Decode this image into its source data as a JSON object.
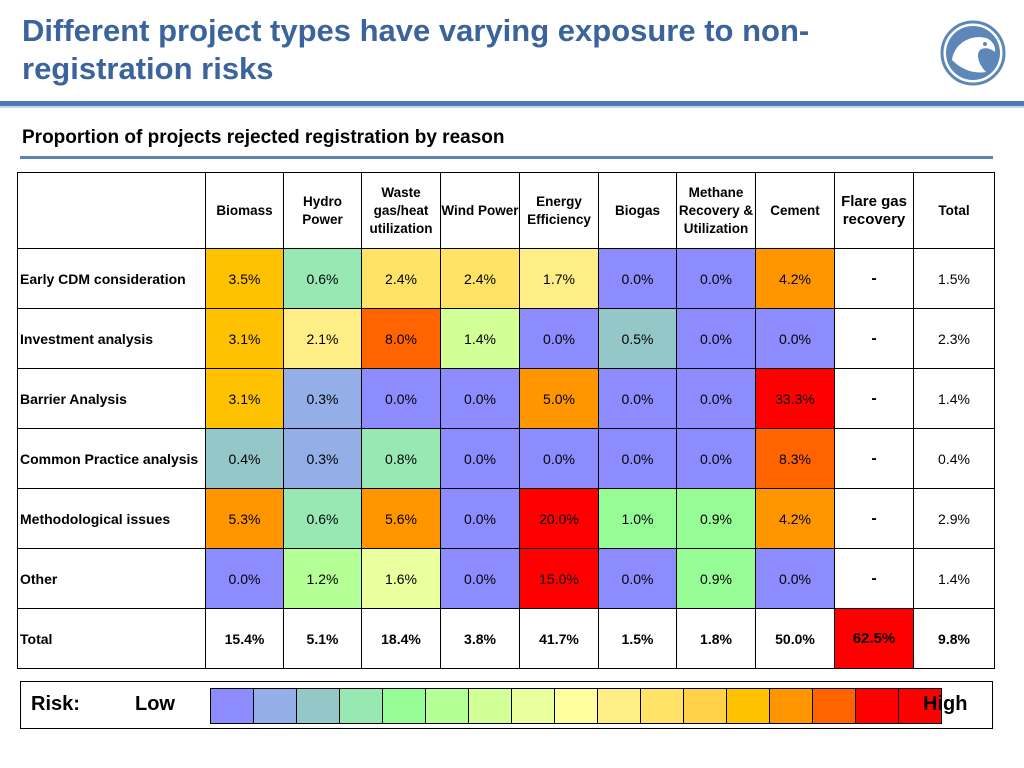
{
  "slide": {
    "title": "Different project types have varying exposure to non-registration risks",
    "subtitle": "Proportion of projects rejected registration by reason"
  },
  "colors": {
    "title": "#3b639c",
    "rule": "#4b79b5",
    "risk_scale": [
      "#8c8cff",
      "#94aee8",
      "#94c8c8",
      "#98e8b4",
      "#96fc96",
      "#b4ff96",
      "#d2ff96",
      "#eaff9e",
      "#ffffa0",
      "#ffee86",
      "#ffe266",
      "#ffd24a",
      "#ffc200",
      "#ff9600",
      "#ff6400",
      "#ff0000",
      "#ff0000"
    ]
  },
  "legend": {
    "risk_label": "Risk:",
    "low_label": "Low",
    "high_label": "High",
    "swatch_count": 17
  },
  "chart_data": {
    "type": "table",
    "title": "Proportion of projects rejected registration by reason",
    "columns": [
      "Biomass",
      "Hydro Power",
      "Waste gas/heat utilization",
      "Wind Power",
      "Energy Efficiency",
      "Biogas",
      "Methane Recovery & Utilization",
      "Cement",
      "Flare gas recovery",
      "Total"
    ],
    "rows": [
      {
        "label": "Early CDM consideration",
        "values": [
          "3.5%",
          "0.6%",
          "2.4%",
          "2.4%",
          "1.7%",
          "0.0%",
          "0.0%",
          "4.2%",
          "-",
          "1.5%"
        ],
        "colors": [
          "#ffc200",
          "#98e8b4",
          "#ffe266",
          "#ffe266",
          "#ffee86",
          "#8c8cff",
          "#8c8cff",
          "#ff9600",
          "#ffffff",
          "#ffffff"
        ]
      },
      {
        "label": "Investment analysis",
        "values": [
          "3.1%",
          "2.1%",
          "8.0%",
          "1.4%",
          "0.0%",
          "0.5%",
          "0.0%",
          "0.0%",
          "-",
          "2.3%"
        ],
        "colors": [
          "#ffc200",
          "#ffee86",
          "#ff6400",
          "#d2ff96",
          "#8c8cff",
          "#94c8c8",
          "#8c8cff",
          "#8c8cff",
          "#ffffff",
          "#ffffff"
        ]
      },
      {
        "label": "Barrier Analysis",
        "values": [
          "3.1%",
          "0.3%",
          "0.0%",
          "0.0%",
          "5.0%",
          "0.0%",
          "0.0%",
          "33.3%",
          "-",
          "1.4%"
        ],
        "colors": [
          "#ffc200",
          "#94aee8",
          "#8c8cff",
          "#8c8cff",
          "#ff9600",
          "#8c8cff",
          "#8c8cff",
          "#ff0000",
          "#ffffff",
          "#ffffff"
        ]
      },
      {
        "label": "Common Practice analysis",
        "values": [
          "0.4%",
          "0.3%",
          "0.8%",
          "0.0%",
          "0.0%",
          "0.0%",
          "0.0%",
          "8.3%",
          "-",
          "0.4%"
        ],
        "colors": [
          "#94c8c8",
          "#94aee8",
          "#98e8b4",
          "#8c8cff",
          "#8c8cff",
          "#8c8cff",
          "#8c8cff",
          "#ff6400",
          "#ffffff",
          "#ffffff"
        ]
      },
      {
        "label": "Methodological issues",
        "values": [
          "5.3%",
          "0.6%",
          "5.6%",
          "0.0%",
          "20.0%",
          "1.0%",
          "0.9%",
          "4.2%",
          "-",
          "2.9%"
        ],
        "colors": [
          "#ff9600",
          "#98e8b4",
          "#ff9600",
          "#8c8cff",
          "#ff0000",
          "#96fc96",
          "#96fc96",
          "#ff9600",
          "#ffffff",
          "#ffffff"
        ]
      },
      {
        "label": "Other",
        "values": [
          "0.0%",
          "1.2%",
          "1.6%",
          "0.0%",
          "15.0%",
          "0.0%",
          "0.9%",
          "0.0%",
          "-",
          "1.4%"
        ],
        "colors": [
          "#8c8cff",
          "#b4ff96",
          "#eaff9e",
          "#8c8cff",
          "#ff0000",
          "#8c8cff",
          "#96fc96",
          "#8c8cff",
          "#ffffff",
          "#ffffff"
        ]
      }
    ],
    "total_row": {
      "label": "Total",
      "values": [
        "15.4%",
        "5.1%",
        "18.4%",
        "3.8%",
        "41.7%",
        "1.5%",
        "1.8%",
        "50.0%",
        "62.5%",
        "9.8%"
      ],
      "colors": [
        "#ffffff",
        "#ffffff",
        "#ffffff",
        "#ffffff",
        "#ffffff",
        "#ffffff",
        "#ffffff",
        "#ffffff",
        "#ff0000",
        "#ffffff"
      ]
    }
  }
}
